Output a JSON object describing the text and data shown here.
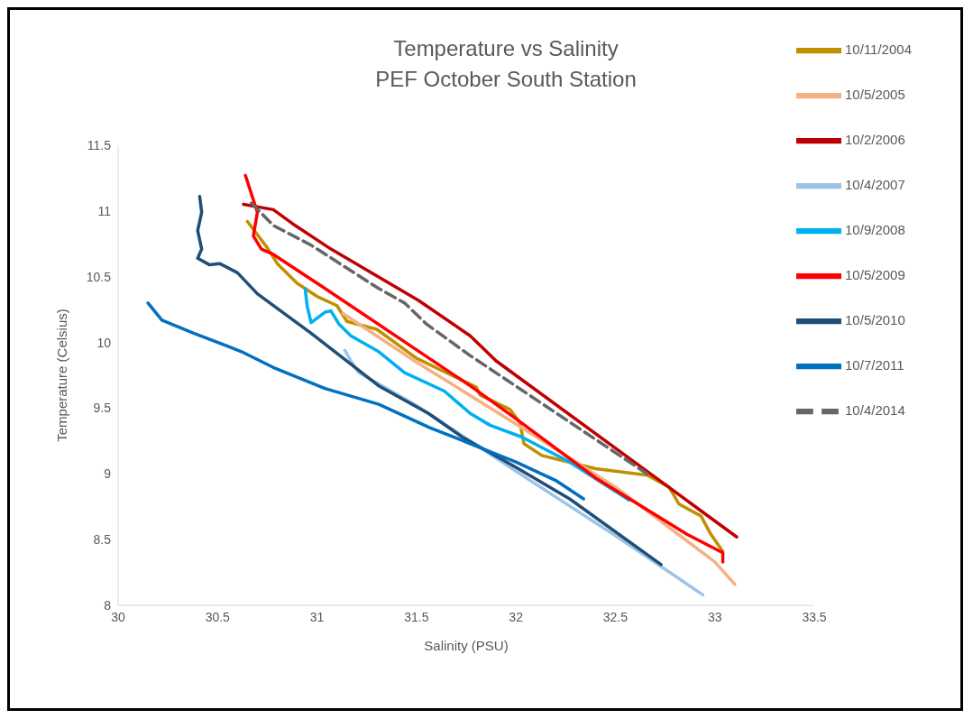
{
  "chart_data": {
    "type": "line",
    "title": "Temperature vs Salinity",
    "subtitle": "PEF October South Station",
    "xlabel": "Salinity (PSU)",
    "ylabel": "Temperature  (Celsius)",
    "xlim": [
      30,
      33.5
    ],
    "xticks": [
      30,
      30.5,
      31,
      31.5,
      32,
      32.5,
      33,
      33.5
    ],
    "ylim": [
      8,
      11.5
    ],
    "yticks": [
      8,
      8.5,
      9,
      9.5,
      10,
      10.5,
      11,
      11.5
    ],
    "grid": false,
    "legend": "top right",
    "marker": "none",
    "line_style": "solid",
    "series": [
      {
        "name": "10/11/2004",
        "color": "#bf9000",
        "x": [
          30.65,
          30.7,
          30.75,
          30.8,
          30.9,
          31.0,
          31.1,
          31.15,
          31.3,
          31.5,
          31.8,
          31.82,
          31.97,
          32.02,
          32.04,
          32.13,
          32.4,
          32.66,
          32.77,
          32.82,
          32.93,
          32.98,
          33.04
        ],
        "values": [
          10.92,
          10.82,
          10.72,
          10.6,
          10.45,
          10.35,
          10.28,
          10.16,
          10.1,
          9.88,
          9.66,
          9.6,
          9.49,
          9.39,
          9.23,
          9.14,
          9.04,
          8.99,
          8.9,
          8.77,
          8.68,
          8.54,
          8.41
        ]
      },
      {
        "name": "10/5/2005",
        "color": "#f4b183",
        "x": [
          31.13,
          31.5,
          32.0,
          32.5,
          33.0,
          33.1
        ],
        "values": [
          10.22,
          9.85,
          9.38,
          8.9,
          8.33,
          8.16
        ]
      },
      {
        "name": "10/2/2006",
        "color": "#c00000",
        "x": [
          30.63,
          30.78,
          30.88,
          31.07,
          31.51,
          31.77,
          31.9,
          33.11
        ],
        "values": [
          11.05,
          11.01,
          10.9,
          10.71,
          10.32,
          10.05,
          9.86,
          8.52
        ]
      },
      {
        "name": "10/4/2007",
        "color": "#9dc3e6",
        "x": [
          31.14,
          31.17,
          31.21,
          31.5,
          32.0,
          32.5,
          32.94
        ],
        "values": [
          9.94,
          9.86,
          9.77,
          9.52,
          9.02,
          8.53,
          8.08
        ]
      },
      {
        "name": "10/9/2008",
        "color": "#00b0f0",
        "x": [
          30.94,
          30.95,
          30.97,
          31.04,
          31.07,
          31.11,
          31.17,
          31.31,
          31.44,
          31.64,
          31.77,
          31.87,
          32.03,
          32.27,
          32.57
        ],
        "values": [
          10.41,
          10.28,
          10.15,
          10.23,
          10.24,
          10.14,
          10.05,
          9.93,
          9.77,
          9.63,
          9.46,
          9.37,
          9.28,
          9.09,
          8.8
        ]
      },
      {
        "name": "10/5/2009",
        "color": "#ff0000",
        "x": [
          30.64,
          30.7,
          30.68,
          30.72,
          30.78,
          31.04,
          31.77,
          32.0,
          32.4,
          32.86,
          33.04,
          33.04
        ],
        "values": [
          11.27,
          10.99,
          10.81,
          10.71,
          10.67,
          10.41,
          9.67,
          9.42,
          8.97,
          8.54,
          8.4,
          8.33
        ]
      },
      {
        "name": "10/5/2010",
        "color": "#1f4e79",
        "x": [
          30.41,
          30.42,
          30.4,
          30.42,
          30.4,
          30.46,
          30.51,
          30.6,
          30.7,
          30.97,
          31.31,
          31.56,
          31.73,
          32.0,
          32.27,
          32.73
        ],
        "values": [
          11.11,
          10.99,
          10.85,
          10.71,
          10.64,
          10.59,
          10.6,
          10.53,
          10.37,
          10.07,
          9.67,
          9.46,
          9.28,
          9.05,
          8.81,
          8.31
        ]
      },
      {
        "name": "10/7/2011",
        "color": "#0070c0",
        "x": [
          30.15,
          30.22,
          30.38,
          30.62,
          30.78,
          31.04,
          31.31,
          31.57,
          31.77,
          32.0,
          32.2,
          32.34
        ],
        "values": [
          10.3,
          10.17,
          10.07,
          9.93,
          9.81,
          9.65,
          9.53,
          9.35,
          9.23,
          9.09,
          8.95,
          8.81
        ]
      },
      {
        "name": "10/4/2014",
        "color": "#666666",
        "line_style": "dashed",
        "x": [
          30.67,
          30.78,
          30.97,
          31.31,
          31.44,
          31.55,
          31.76,
          32.66
        ],
        "values": [
          11.06,
          10.89,
          10.74,
          10.41,
          10.3,
          10.14,
          9.91,
          9.0
        ]
      }
    ]
  }
}
